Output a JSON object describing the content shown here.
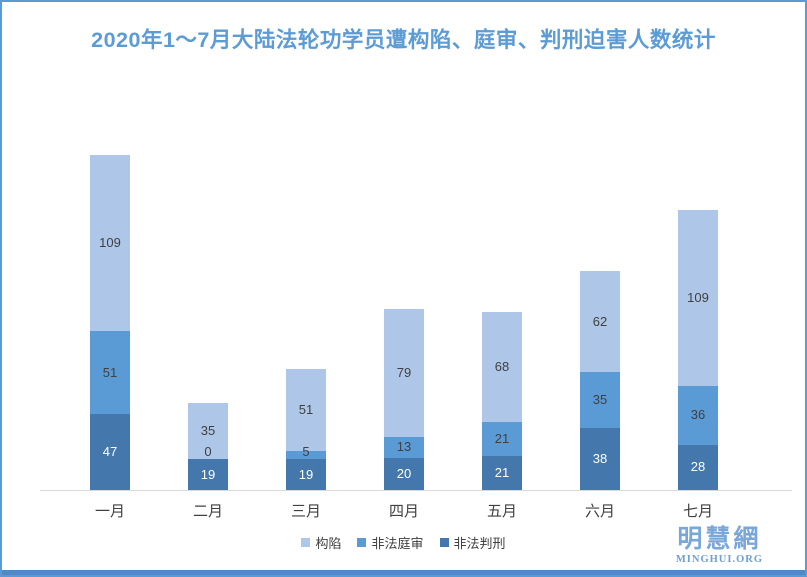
{
  "title": "2020年1～7月大陆法轮功学员遭构陷、庭审、判刑迫害人数统计",
  "frame": {
    "border_color": "#5B9BD5",
    "bottom_bar_color": "#4D8BC8"
  },
  "chart_data": {
    "type": "bar",
    "stacked": true,
    "title": "2020年1～7月大陆法轮功学员遭构陷、庭审、判刑迫害人数统计",
    "categories": [
      "一月",
      "二月",
      "三月",
      "四月",
      "五月",
      "六月",
      "七月"
    ],
    "series": [
      {
        "name": "非法判刑",
        "key": "feifa-panxing",
        "color": "#4478AC",
        "label_color": "#FFFFFF",
        "values": [
          47,
          19,
          19,
          20,
          21,
          38,
          28
        ]
      },
      {
        "name": "非法庭审",
        "key": "feifa-tingshen",
        "color": "#5B9BD5",
        "label_color": "#404040",
        "values": [
          51,
          0,
          5,
          13,
          21,
          35,
          36
        ]
      },
      {
        "name": "构陷",
        "key": "gouxian",
        "color": "#AEC7E8",
        "label_color": "#404040",
        "values": [
          109,
          35,
          51,
          79,
          68,
          62,
          109
        ]
      }
    ],
    "totals": [
      207,
      54,
      75,
      112,
      110,
      135,
      173
    ],
    "data_labels": true,
    "gridlines": false,
    "y_axis": "hidden",
    "legend_position": "bottom",
    "legend_order": [
      "构陷",
      "非法庭审",
      "非法判刑"
    ]
  },
  "logo": {
    "name": "明慧網",
    "url_text": "MINGHUI.ORG"
  }
}
